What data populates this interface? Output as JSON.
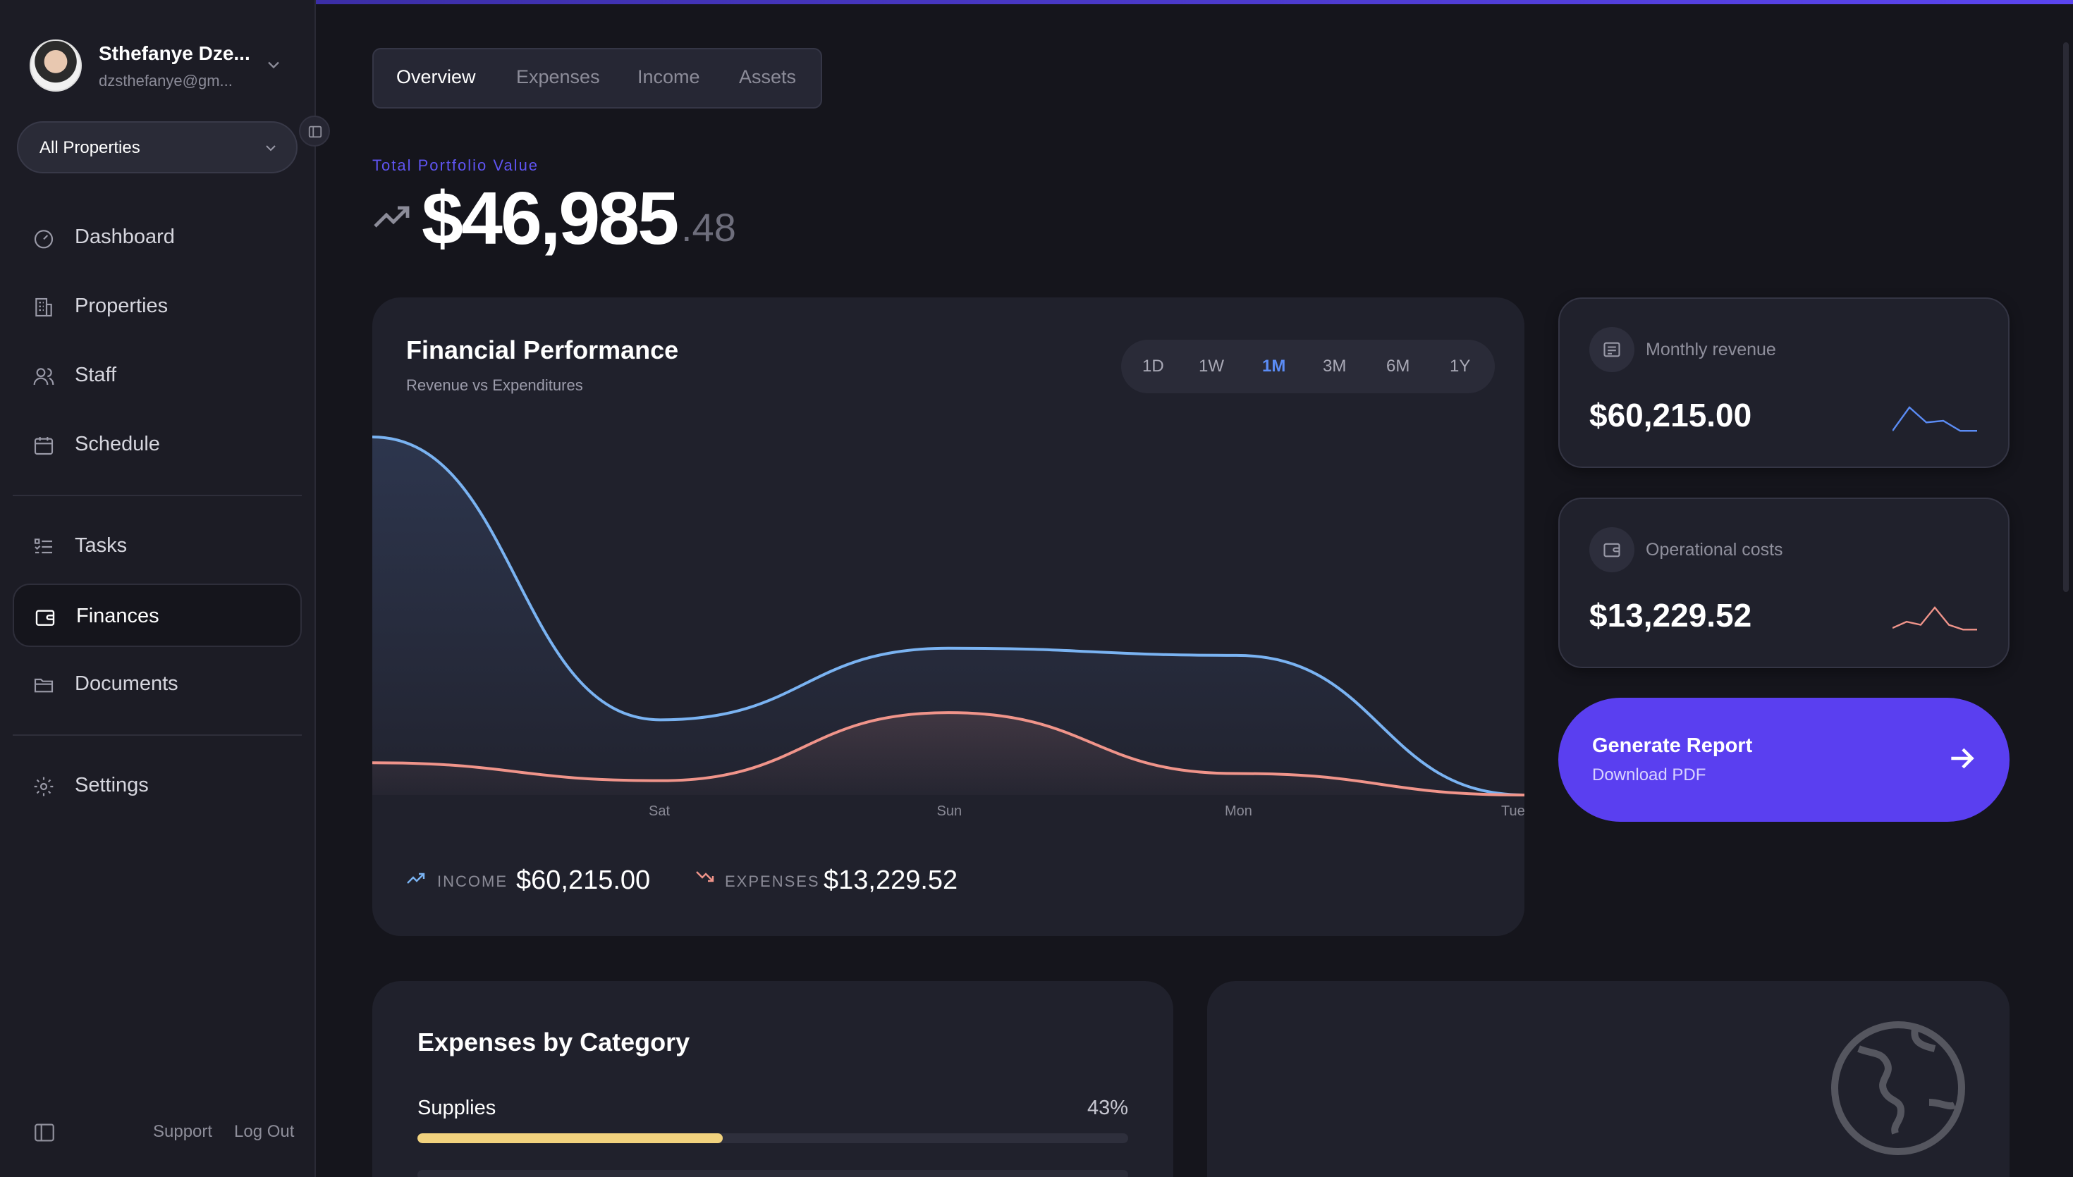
{
  "user": {
    "name": "Sthefanye Dze...",
    "email": "dzsthefanye@gm..."
  },
  "property_selector": {
    "value": "All Properties"
  },
  "nav": {
    "dashboard": "Dashboard",
    "properties": "Properties",
    "staff": "Staff",
    "schedule": "Schedule",
    "tasks": "Tasks",
    "finances": "Finances",
    "documents": "Documents",
    "settings": "Settings"
  },
  "footer": {
    "support": "Support",
    "logout": "Log Out"
  },
  "tabs": [
    "Overview",
    "Expenses",
    "Income",
    "Assets"
  ],
  "portfolio": {
    "label": "Total Portfolio Value",
    "value": "$46,985",
    "cents": ".48"
  },
  "performance": {
    "title": "Financial Performance",
    "subtitle": "Revenue vs Expenditures",
    "ranges": [
      "1D",
      "1W",
      "1M",
      "3M",
      "6M",
      "1Y"
    ],
    "active_range": "1M",
    "income_label": "INCOME",
    "income_value": "$60,215.00",
    "expenses_label": "EXPENSES",
    "expenses_value": "$13,229.52"
  },
  "chart_data": {
    "type": "area",
    "x": [
      "",
      "Sat",
      "Sun",
      "Mon",
      "Tue"
    ],
    "x_tick_labels": [
      "Sat",
      "Sun",
      "Mon",
      "Tue"
    ],
    "series": [
      {
        "values": [
          100,
          21,
          41,
          39,
          0
        ],
        "color": "#7ab3f2"
      },
      {
        "values": [
          9,
          4,
          23,
          6,
          0
        ],
        "color": "#f0948a"
      }
    ],
    "ylim": [
      0,
      100
    ],
    "grid": false
  },
  "stats": {
    "revenue": {
      "label": "Monthly revenue",
      "value": "$60,215.00",
      "spark": [
        10,
        80,
        35,
        40,
        10,
        10
      ],
      "color": "#5b8cf5"
    },
    "costs": {
      "label": "Operational costs",
      "value": "$13,229.52",
      "spark": [
        20,
        40,
        30,
        85,
        30,
        15,
        15
      ],
      "color": "#f0948a"
    }
  },
  "report": {
    "title": "Generate Report",
    "subtitle": "Download PDF"
  },
  "expenses_by_category": {
    "title": "Expenses by Category",
    "items": [
      {
        "name": "Supplies",
        "percent_label": "43%",
        "fraction": 0.43,
        "color": "#f1d27e"
      }
    ]
  },
  "colors": {
    "accent": "#5a3ff0",
    "income": "#7ab3f2",
    "expense": "#f0948a"
  }
}
